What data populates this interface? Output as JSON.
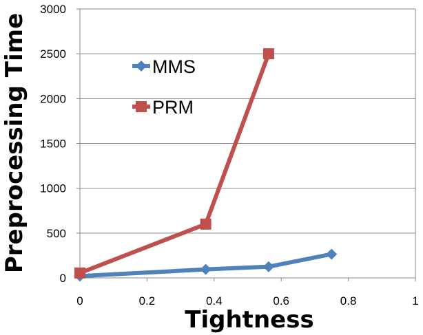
{
  "chart_data": {
    "type": "line",
    "title": "",
    "xlabel": "Tightness",
    "ylabel": "Preprocessing Time",
    "xlim": [
      0,
      1
    ],
    "ylim": [
      0,
      3000
    ],
    "x_ticks": [
      "0",
      "0.2",
      "0.4",
      "0.6",
      "0.8",
      "1"
    ],
    "y_ticks": [
      "0",
      "500",
      "1000",
      "1500",
      "2000",
      "2500",
      "3000"
    ],
    "grid": "horizontal",
    "legend_position": "top-left inside plot",
    "series": [
      {
        "name": "MMS",
        "color": "#4F81BD",
        "marker": "diamond",
        "x": [
          0,
          0.375,
          0.5625,
          0.75
        ],
        "values": [
          20,
          95,
          125,
          265
        ]
      },
      {
        "name": "PRM",
        "color": "#C0504D",
        "marker": "square",
        "x": [
          0,
          0.375,
          0.5625
        ],
        "values": [
          55,
          600,
          2500
        ]
      }
    ]
  }
}
